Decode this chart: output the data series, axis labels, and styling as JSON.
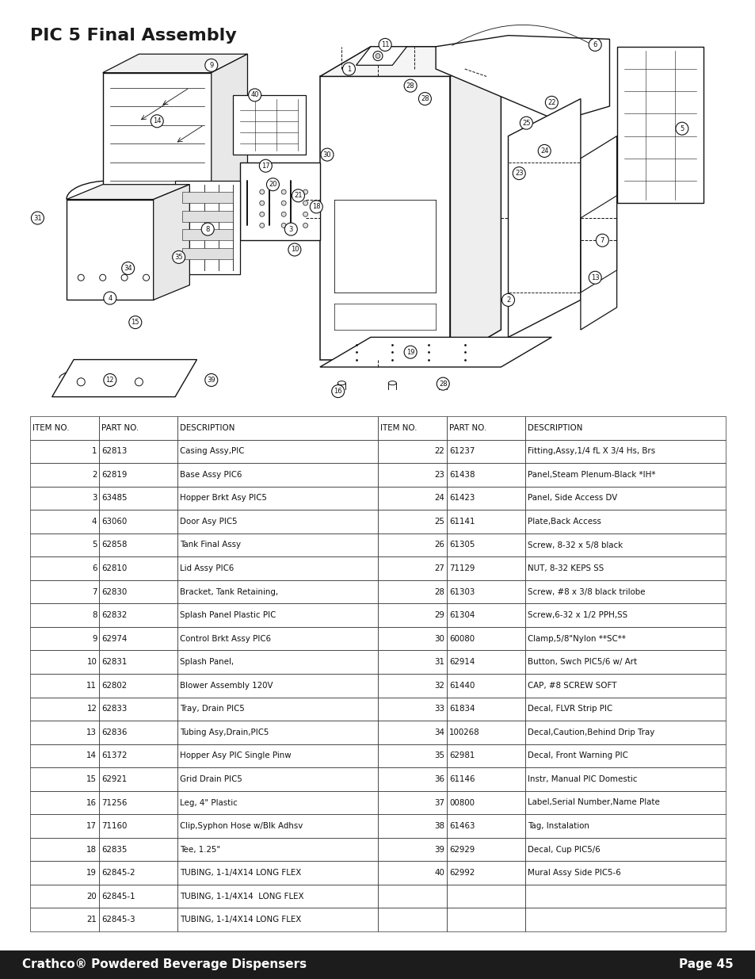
{
  "title": "PIC 5 Final Assembly",
  "bg_color": "#ffffff",
  "footer_bg": "#1c1c1c",
  "footer_left": "Crathco® Powdered Beverage Dispensers",
  "footer_right": "Page 45",
  "table_header": [
    "ITEM NO.",
    "PART NO.",
    "DESCRIPTION",
    "ITEM NO.",
    "PART NO.",
    "DESCRIPTION"
  ],
  "rows_left": [
    [
      "1",
      "62813",
      "Casing Assy,PIC"
    ],
    [
      "2",
      "62819",
      "Base Assy PIC6"
    ],
    [
      "3",
      "63485",
      "Hopper Brkt Asy PIC5"
    ],
    [
      "4",
      "63060",
      "Door Asy PIC5"
    ],
    [
      "5",
      "62858",
      "Tank Final Assy"
    ],
    [
      "6",
      "62810",
      "Lid Assy PIC6"
    ],
    [
      "7",
      "62830",
      "Bracket, Tank Retaining,"
    ],
    [
      "8",
      "62832",
      "Splash Panel Plastic PIC"
    ],
    [
      "9",
      "62974",
      "Control Brkt Assy PIC6"
    ],
    [
      "10",
      "62831",
      "Splash Panel,"
    ],
    [
      "11",
      "62802",
      "Blower Assembly 120V"
    ],
    [
      "12",
      "62833",
      "Tray, Drain PIC5"
    ],
    [
      "13",
      "62836",
      "Tubing Asy,Drain,PIC5"
    ],
    [
      "14",
      "61372",
      "Hopper Asy PIC Single Pinw"
    ],
    [
      "15",
      "62921",
      "Grid Drain PIC5"
    ],
    [
      "16",
      "71256",
      "Leg, 4\" Plastic"
    ],
    [
      "17",
      "71160",
      "Clip,Syphon Hose w/Blk Adhsv"
    ],
    [
      "18",
      "62835",
      "Tee, 1.25\""
    ],
    [
      "19",
      "62845-2",
      "TUBING, 1-1/4X14 LONG FLEX"
    ],
    [
      "20",
      "62845-1",
      "TUBING, 1-1/4X14  LONG FLEX"
    ],
    [
      "21",
      "62845-3",
      "TUBING, 1-1/4X14 LONG FLEX"
    ]
  ],
  "rows_right": [
    [
      "22",
      "61237",
      "Fitting,Assy,1/4 fL X 3/4 Hs, Brs"
    ],
    [
      "23",
      "61438",
      "Panel,Steam Plenum-Black *IH*"
    ],
    [
      "24",
      "61423",
      "Panel, Side Access DV"
    ],
    [
      "25",
      "61141",
      "Plate,Back Access"
    ],
    [
      "26",
      "61305",
      "Screw, 8-32 x 5/8 black"
    ],
    [
      "27",
      "71129",
      "NUT, 8-32 KEPS SS"
    ],
    [
      "28",
      "61303",
      "Screw, #8 x 3/8 black trilobe"
    ],
    [
      "29",
      "61304",
      "Screw,6-32 x 1/2 PPH,SS"
    ],
    [
      "30",
      "60080",
      "Clamp,5/8\"Nylon **SC**"
    ],
    [
      "31",
      "62914",
      "Button, Swch PIC5/6 w/ Art"
    ],
    [
      "32",
      "61440",
      "CAP, #8 SCREW SOFT"
    ],
    [
      "33",
      "61834",
      "Decal, FLVR Strip PIC"
    ],
    [
      "34",
      "100268",
      "Decal,Caution,Behind Drip Tray"
    ],
    [
      "35",
      "62981",
      "Decal, Front Warning PIC"
    ],
    [
      "36",
      "61146",
      "Instr, Manual PIC Domestic"
    ],
    [
      "37",
      "00800",
      "Label,Serial Number,Name Plate"
    ],
    [
      "38",
      "61463",
      "Tag, Instalation"
    ],
    [
      "39",
      "62929",
      "Decal, Cup PIC5/6"
    ],
    [
      "40",
      "62992",
      "Mural Assy Side PIC5-6"
    ],
    [
      "",
      "",
      ""
    ],
    [
      "",
      "",
      ""
    ]
  ]
}
